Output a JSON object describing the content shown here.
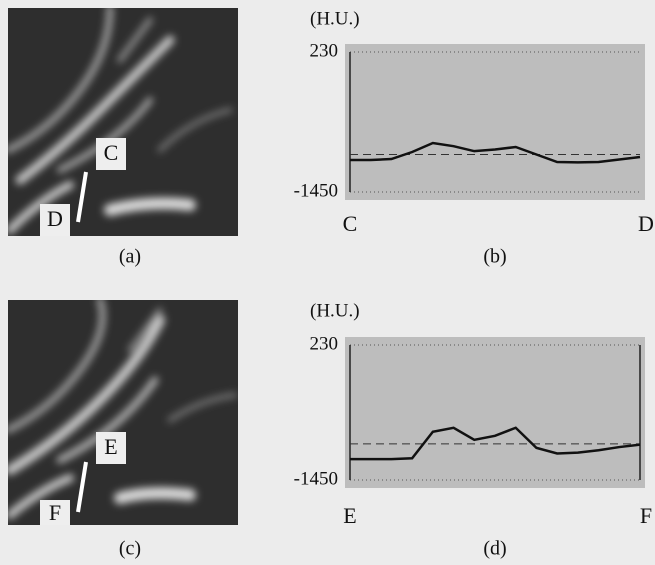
{
  "images": [
    {
      "labels": [
        "C",
        "D"
      ],
      "caption": "(a)"
    },
    {
      "labels": [
        "E",
        "F"
      ],
      "caption": "(c)"
    }
  ],
  "chart_data": [
    {
      "type": "line",
      "caption": "(b)",
      "y_label": "(H.U.)",
      "start_label": "C",
      "end_label": "D",
      "values": [
        -1066,
        -1066,
        -1054,
        -970,
        -862,
        -900,
        -960,
        -940,
        -910,
        -1000,
        -1090,
        -1095,
        -1090,
        -1060,
        -1030
      ],
      "reference": -1000,
      "ylim": [
        -1450,
        230
      ],
      "yticks": [
        230,
        -1450
      ],
      "color": "#111111",
      "background": "#bdbdbd"
    },
    {
      "type": "line",
      "caption": "(d)",
      "y_label": "(H.U.)",
      "start_label": "E",
      "end_label": "F",
      "values": [
        -1190,
        -1190,
        -1190,
        -1180,
        -850,
        -800,
        -950,
        -900,
        -800,
        -1050,
        -1120,
        -1110,
        -1080,
        -1040,
        -1010
      ],
      "reference": -1000,
      "ylim": [
        -1450,
        230
      ],
      "yticks": [
        230,
        -1450
      ],
      "color": "#111111",
      "background": "#bdbdbd"
    }
  ]
}
